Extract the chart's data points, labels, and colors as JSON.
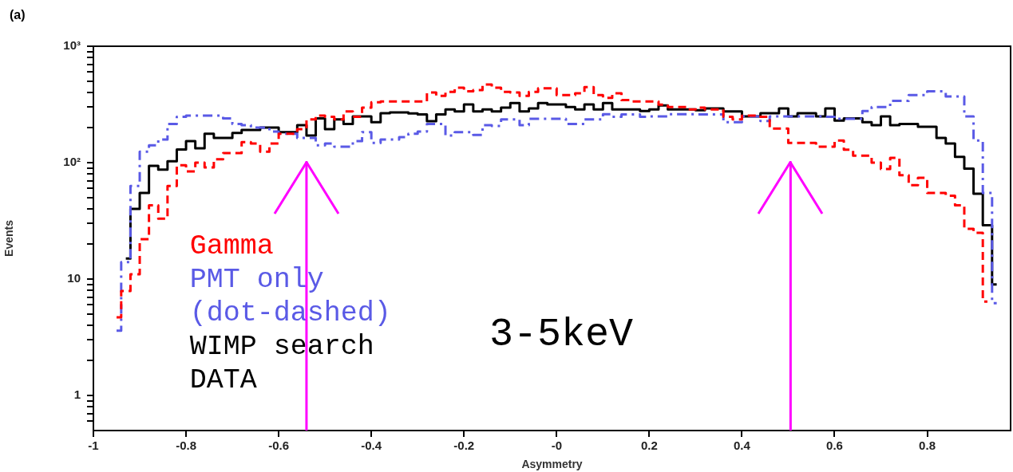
{
  "chart_data": {
    "type": "step",
    "xlabel": "Asymmetry",
    "ylabel": "Events",
    "annotations": [
      "(a)",
      "3-5keV"
    ],
    "x": [
      -0.95,
      -0.93,
      -0.91,
      -0.89,
      -0.87,
      -0.85,
      -0.83,
      -0.81,
      -0.79,
      -0.77,
      -0.75,
      -0.73,
      -0.71,
      -0.69,
      -0.67,
      -0.65,
      -0.63,
      -0.61,
      -0.59,
      -0.57,
      -0.55,
      -0.53,
      -0.51,
      -0.49,
      -0.47,
      -0.45,
      -0.43,
      -0.41,
      -0.39,
      -0.37,
      -0.35,
      -0.33,
      -0.31,
      -0.29,
      -0.27,
      -0.25,
      -0.23,
      -0.21,
      -0.19,
      -0.17,
      -0.15,
      -0.13,
      -0.11,
      -0.09,
      -0.07,
      -0.05,
      -0.03,
      -0.01,
      0.01,
      0.03,
      0.05,
      0.07,
      0.09,
      0.11,
      0.13,
      0.15,
      0.17,
      0.19,
      0.21,
      0.23,
      0.25,
      0.27,
      0.29,
      0.31,
      0.33,
      0.35,
      0.37,
      0.39,
      0.41,
      0.43,
      0.45,
      0.47,
      0.49,
      0.51,
      0.53,
      0.55,
      0.57,
      0.59,
      0.61,
      0.63,
      0.65,
      0.67,
      0.69,
      0.71,
      0.73,
      0.75,
      0.77,
      0.79,
      0.81,
      0.83,
      0.85,
      0.87,
      0.89,
      0.91,
      0.93,
      0.95
    ],
    "series": [
      {
        "name": "Gamma",
        "color": "#ff0000",
        "line_style": "dashed",
        "values": [
          4.7,
          7.9,
          11,
          22,
          43,
          33,
          63,
          95,
          84,
          100,
          91,
          107,
          121,
          121,
          150,
          146,
          124,
          146,
          177,
          177,
          194,
          235,
          254,
          248,
          235,
          275,
          248,
          297,
          330,
          335,
          335,
          335,
          335,
          335,
          400,
          375,
          405,
          440,
          410,
          420,
          470,
          440,
          405,
          400,
          375,
          405,
          435,
          435,
          380,
          380,
          395,
          445,
          380,
          360,
          395,
          345,
          335,
          335,
          335,
          315,
          300,
          300,
          287,
          297,
          287,
          287,
          248,
          235,
          254,
          254,
          248,
          196,
          196,
          148,
          148,
          148,
          137,
          137,
          155,
          129,
          115,
          115,
          100,
          88,
          110,
          78,
          64,
          74,
          55,
          55,
          52,
          43,
          27,
          25,
          6.4,
          null
        ]
      },
      {
        "name": "PMT only (dot-dashed)",
        "color": "#5a5ae6",
        "line_style": "dashdot",
        "values": [
          3.6,
          14,
          63,
          124,
          141,
          158,
          215,
          248,
          254,
          254,
          254,
          254,
          240,
          215,
          210,
          200,
          200,
          185,
          177,
          177,
          163,
          163,
          141,
          146,
          137,
          137,
          153,
          183,
          148,
          158,
          158,
          166,
          177,
          185,
          215,
          215,
          171,
          183,
          183,
          173,
          210,
          207,
          235,
          235,
          210,
          238,
          238,
          238,
          238,
          215,
          215,
          235,
          235,
          261,
          248,
          260,
          260,
          248,
          250,
          250,
          261,
          261,
          261,
          260,
          260,
          260,
          223,
          223,
          250,
          250,
          228,
          250,
          250,
          250,
          250,
          250,
          250,
          248,
          238,
          238,
          238,
          278,
          300,
          300,
          340,
          340,
          380,
          380,
          410,
          410,
          370,
          370,
          250,
          155,
          55,
          6.2
        ]
      },
      {
        "name": "WIMP search DATA",
        "color": "#000000",
        "line_style": "solid",
        "values": [
          null,
          15,
          40,
          55,
          94,
          87,
          103,
          130,
          153,
          133,
          177,
          163,
          163,
          180,
          191,
          191,
          200,
          200,
          183,
          183,
          210,
          171,
          240,
          194,
          235,
          215,
          250,
          250,
          223,
          266,
          270,
          270,
          265,
          260,
          227,
          260,
          287,
          275,
          316,
          275,
          287,
          275,
          297,
          325,
          275,
          292,
          325,
          316,
          316,
          300,
          287,
          316,
          287,
          325,
          287,
          287,
          287,
          278,
          287,
          310,
          287,
          287,
          287,
          282,
          292,
          292,
          275,
          275,
          250,
          250,
          266,
          266,
          292,
          250,
          266,
          266,
          250,
          292,
          230,
          240,
          240,
          223,
          210,
          250,
          210,
          215,
          215,
          203,
          203,
          163,
          146,
          112,
          89,
          54,
          29,
          9
        ]
      }
    ],
    "ref_lines": [
      {
        "axis": "x",
        "value": -0.54,
        "color": "#ff00ff"
      },
      {
        "axis": "x",
        "value": 0.505,
        "color": "#ff00ff"
      }
    ],
    "xlim": [
      -1,
      0.98
    ],
    "ylim": [
      0.5,
      1000
    ],
    "log": true,
    "grid": false,
    "legend": "bottom left",
    "xticks": [
      -1,
      -0.8,
      -0.6,
      -0.4,
      -0.2,
      {
        "value": 0,
        "label": "-0"
      },
      0.2,
      0.4,
      0.6,
      0.8
    ],
    "yticks": [
      {
        "value": 0.6,
        "label": null
      },
      {
        "value": 0.7,
        "label": null
      },
      {
        "value": 0.8,
        "label": null
      },
      {
        "value": 0.9,
        "label": null
      },
      1,
      {
        "value": 2,
        "label": null
      },
      {
        "value": 3,
        "label": null
      },
      {
        "value": 4,
        "label": null
      },
      {
        "value": 5,
        "label": null
      },
      {
        "value": 6,
        "label": null
      },
      {
        "value": 7,
        "label": null
      },
      {
        "value": 8,
        "label": null
      },
      {
        "value": 9,
        "label": null
      },
      10,
      {
        "value": 20,
        "label": null
      },
      {
        "value": 30,
        "label": null
      },
      {
        "value": 40,
        "label": null
      },
      {
        "value": 50,
        "label": null
      },
      {
        "value": 60,
        "label": null
      },
      {
        "value": 70,
        "label": null
      },
      {
        "value": 80,
        "label": null
      },
      {
        "value": 90,
        "label": null
      },
      {
        "value": 100,
        "label": "10²"
      },
      {
        "value": 200,
        "label": null
      },
      {
        "value": 300,
        "label": null
      },
      {
        "value": 400,
        "label": null
      },
      {
        "value": 500,
        "label": null
      },
      {
        "value": 600,
        "label": null
      },
      {
        "value": 700,
        "label": null
      },
      {
        "value": 800,
        "label": null
      },
      {
        "value": 900,
        "label": null
      },
      {
        "value": 1000,
        "label": "10³"
      }
    ]
  }
}
